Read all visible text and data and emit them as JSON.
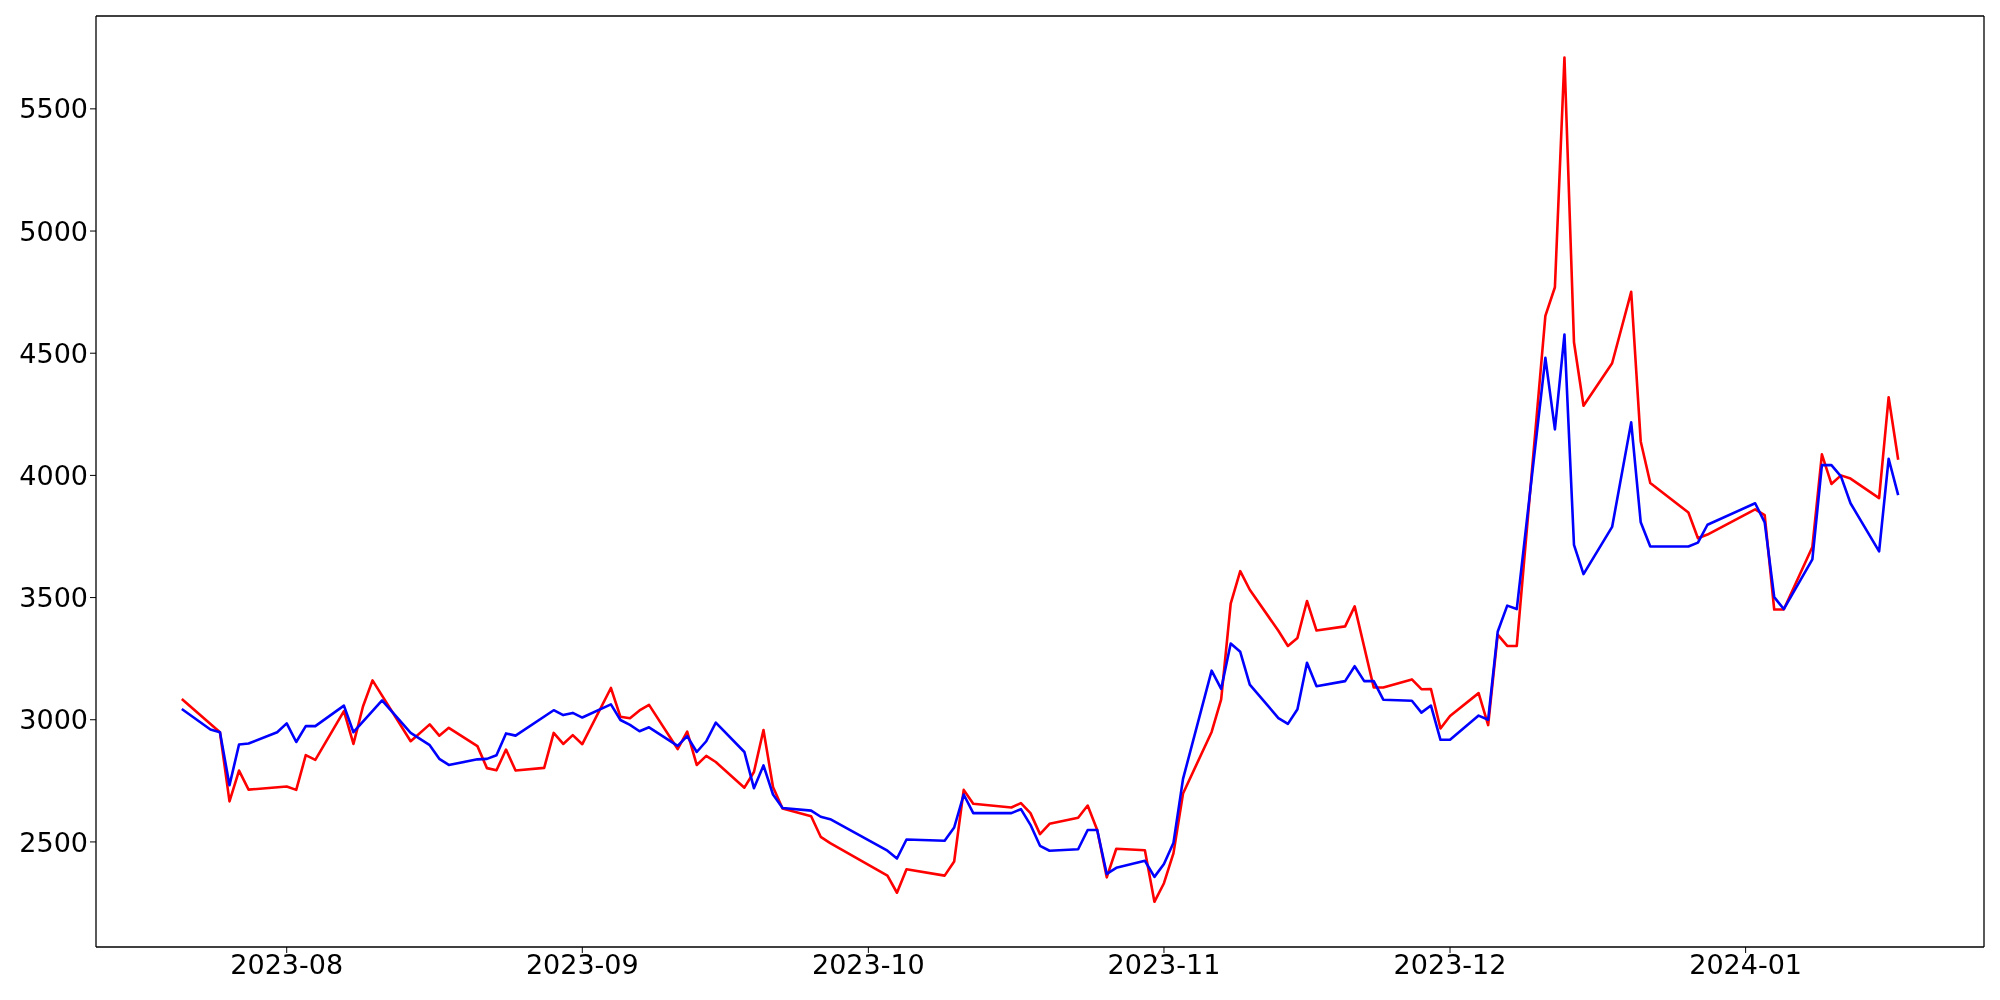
{
  "chart_data": {
    "type": "line",
    "xlim": [
      "2023-07-12",
      "2024-01-26"
    ],
    "xticks": [
      "2023-08",
      "2023-09",
      "2023-10",
      "2023-11",
      "2023-12",
      "2024-01"
    ],
    "ylim": [
      2070,
      5880
    ],
    "yticks": [
      2500,
      3000,
      3500,
      4000,
      4500,
      5000,
      5500
    ],
    "series": [
      {
        "color": "#ff0000",
        "x": [
          "2023-07-21",
          "2023-07-25",
          "2023-07-26",
          "2023-07-27",
          "2023-07-28",
          "2023-08-01",
          "2023-08-02",
          "2023-08-03",
          "2023-08-04",
          "2023-08-07",
          "2023-08-08",
          "2023-08-09",
          "2023-08-10",
          "2023-08-14",
          "2023-08-16",
          "2023-08-17",
          "2023-08-18",
          "2023-08-21",
          "2023-08-22",
          "2023-08-23",
          "2023-08-24",
          "2023-08-25",
          "2023-08-28",
          "2023-08-29",
          "2023-08-30",
          "2023-08-31",
          "2023-09-01",
          "2023-09-04",
          "2023-09-05",
          "2023-09-06",
          "2023-09-07",
          "2023-09-08",
          "2023-09-11",
          "2023-09-12",
          "2023-09-13",
          "2023-09-14",
          "2023-09-15",
          "2023-09-18",
          "2023-09-19",
          "2023-09-20",
          "2023-09-21",
          "2023-09-22",
          "2023-09-25",
          "2023-09-26",
          "2023-09-27",
          "2023-10-03",
          "2023-10-04",
          "2023-10-05",
          "2023-10-09",
          "2023-10-10",
          "2023-10-11",
          "2023-10-12",
          "2023-10-16",
          "2023-10-17",
          "2023-10-18",
          "2023-10-19",
          "2023-10-20",
          "2023-10-23",
          "2023-10-24",
          "2023-10-25",
          "2023-10-26",
          "2023-10-27",
          "2023-10-30",
          "2023-10-31",
          "2023-11-01",
          "2023-11-02",
          "2023-11-03",
          "2023-11-06",
          "2023-11-07",
          "2023-11-08",
          "2023-11-09",
          "2023-11-10",
          "2023-11-13",
          "2023-11-14",
          "2023-11-15",
          "2023-11-16",
          "2023-11-17",
          "2023-11-20",
          "2023-11-21",
          "2023-11-23",
          "2023-11-24",
          "2023-11-27",
          "2023-11-28",
          "2023-11-29",
          "2023-11-30",
          "2023-12-01",
          "2023-12-04",
          "2023-12-05",
          "2023-12-06",
          "2023-12-07",
          "2023-12-08",
          "2023-12-11",
          "2023-12-12",
          "2023-12-13",
          "2023-12-14",
          "2023-12-15",
          "2023-12-18",
          "2023-12-20",
          "2023-12-21",
          "2023-12-22",
          "2023-12-26",
          "2023-12-27",
          "2023-12-28",
          "2024-01-02",
          "2024-01-03",
          "2024-01-04",
          "2024-01-05",
          "2024-01-08",
          "2024-01-09",
          "2024-01-10",
          "2024-01-11",
          "2024-01-12",
          "2024-01-15",
          "2024-01-16",
          "2024-01-17"
        ],
        "values": [
          3085,
          2949,
          2666,
          2792,
          2714,
          2727,
          2713,
          2855,
          2836,
          3035,
          2901,
          3054,
          3161,
          2912,
          2981,
          2935,
          2967,
          2892,
          2802,
          2793,
          2878,
          2792,
          2803,
          2946,
          2901,
          2937,
          2900,
          3130,
          3012,
          3006,
          3038,
          3061,
          2880,
          2951,
          2815,
          2852,
          2827,
          2722,
          2786,
          2958,
          2725,
          2637,
          2605,
          2521,
          2495,
          2362,
          2292,
          2388,
          2362,
          2420,
          2713,
          2656,
          2641,
          2659,
          2618,
          2532,
          2574,
          2599,
          2649,
          2549,
          2355,
          2472,
          2466,
          2255,
          2331,
          2454,
          2698,
          2950,
          3083,
          3475,
          3608,
          3532,
          3364,
          3302,
          3335,
          3486,
          3365,
          3382,
          3464,
          3132,
          3132,
          3165,
          3125,
          3126,
          2964,
          3015,
          3109,
          2978,
          3348,
          3302,
          3302,
          4653,
          4770,
          5710,
          4545,
          4285,
          4459,
          4751,
          4139,
          3969,
          3848,
          3743,
          3758,
          3861,
          3837,
          3451,
          3451,
          3707,
          4086,
          3965,
          4000,
          3987,
          3907,
          4320,
          4064
        ]
      },
      {
        "color": "#0000ff",
        "x": [
          "2023-07-21",
          "2023-07-24",
          "2023-07-25",
          "2023-07-26",
          "2023-07-27",
          "2023-07-28",
          "2023-07-31",
          "2023-08-01",
          "2023-08-02",
          "2023-08-03",
          "2023-08-04",
          "2023-08-07",
          "2023-08-08",
          "2023-08-11",
          "2023-08-14",
          "2023-08-16",
          "2023-08-17",
          "2023-08-18",
          "2023-08-21",
          "2023-08-22",
          "2023-08-23",
          "2023-08-24",
          "2023-08-25",
          "2023-08-29",
          "2023-08-30",
          "2023-08-31",
          "2023-09-01",
          "2023-09-04",
          "2023-09-05",
          "2023-09-06",
          "2023-09-07",
          "2023-09-08",
          "2023-09-11",
          "2023-09-12",
          "2023-09-13",
          "2023-09-14",
          "2023-09-15",
          "2023-09-18",
          "2023-09-19",
          "2023-09-20",
          "2023-09-21",
          "2023-09-22",
          "2023-09-25",
          "2023-09-26",
          "2023-09-27",
          "2023-10-03",
          "2023-10-04",
          "2023-10-05",
          "2023-10-09",
          "2023-10-10",
          "2023-10-11",
          "2023-10-12",
          "2023-10-16",
          "2023-10-17",
          "2023-10-18",
          "2023-10-19",
          "2023-10-20",
          "2023-10-23",
          "2023-10-24",
          "2023-10-25",
          "2023-10-26",
          "2023-10-27",
          "2023-10-30",
          "2023-10-31",
          "2023-11-01",
          "2023-11-02",
          "2023-11-03",
          "2023-11-06",
          "2023-11-07",
          "2023-11-08",
          "2023-11-09",
          "2023-11-10",
          "2023-11-13",
          "2023-11-14",
          "2023-11-15",
          "2023-11-16",
          "2023-11-17",
          "2023-11-20",
          "2023-11-21",
          "2023-11-22",
          "2023-11-23",
          "2023-11-24",
          "2023-11-27",
          "2023-11-28",
          "2023-11-29",
          "2023-11-30",
          "2023-12-01",
          "2023-12-04",
          "2023-12-05",
          "2023-12-06",
          "2023-12-07",
          "2023-12-08",
          "2023-12-11",
          "2023-12-12",
          "2023-12-13",
          "2023-12-14",
          "2023-12-15",
          "2023-12-18",
          "2023-12-20",
          "2023-12-21",
          "2023-12-22",
          "2023-12-26",
          "2023-12-27",
          "2023-12-28",
          "2024-01-02",
          "2024-01-03",
          "2024-01-04",
          "2024-01-05",
          "2024-01-08",
          "2024-01-09",
          "2024-01-10",
          "2024-01-11",
          "2024-01-12",
          "2024-01-15",
          "2024-01-16",
          "2024-01-17"
        ],
        "values": [
          3044,
          2960,
          2949,
          2732,
          2899,
          2903,
          2949,
          2985,
          2909,
          2974,
          2974,
          3058,
          2949,
          3079,
          2946,
          2896,
          2840,
          2815,
          2838,
          2840,
          2855,
          2944,
          2935,
          3039,
          3019,
          3028,
          3009,
          3063,
          2999,
          2979,
          2953,
          2969,
          2893,
          2933,
          2868,
          2912,
          2988,
          2868,
          2720,
          2813,
          2694,
          2639,
          2628,
          2603,
          2593,
          2464,
          2432,
          2510,
          2505,
          2559,
          2694,
          2618,
          2618,
          2634,
          2570,
          2484,
          2464,
          2470,
          2549,
          2549,
          2369,
          2394,
          2423,
          2357,
          2410,
          2497,
          2758,
          3201,
          3126,
          3312,
          3278,
          3144,
          3007,
          2983,
          3043,
          3233,
          3137,
          3158,
          3219,
          3158,
          3158,
          3082,
          3078,
          3029,
          3058,
          2918,
          2918,
          3017,
          3000,
          3360,
          3467,
          3453,
          4481,
          4188,
          4576,
          3716,
          3596,
          3789,
          4217,
          3808,
          3709,
          3709,
          3725,
          3798,
          3886,
          3808,
          3502,
          3453,
          3656,
          4042,
          4042,
          3996,
          3886,
          3689,
          4068,
          3919
        ]
      }
    ]
  }
}
